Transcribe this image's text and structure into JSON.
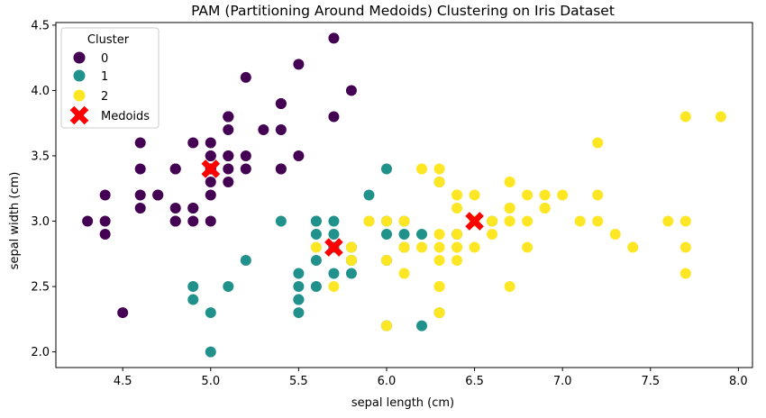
{
  "chart_data": {
    "type": "scatter",
    "title": "PAM (Partitioning Around Medoids) Clustering on Iris Dataset",
    "xlabel": "sepal length (cm)",
    "ylabel": "sepal width (cm)",
    "xlim": [
      4.12,
      8.08
    ],
    "ylim": [
      1.88,
      4.52
    ],
    "xticks": [
      "4.5",
      "5.0",
      "5.5",
      "6.0",
      "6.5",
      "7.0",
      "7.5",
      "8.0"
    ],
    "yticks": [
      "2.0",
      "2.5",
      "3.0",
      "3.5",
      "4.0",
      "4.5"
    ],
    "grid": false,
    "legend": {
      "title": "Cluster",
      "placement": "top-left",
      "entries": [
        "0",
        "1",
        "2",
        "Medoids"
      ]
    },
    "colors": {
      "0": "#440154",
      "1": "#21918c",
      "2": "#fde725",
      "medoid": "#ff0000"
    },
    "series": [
      {
        "name": "0",
        "points": [
          [
            5.1,
            3.5
          ],
          [
            4.9,
            3.0
          ],
          [
            4.7,
            3.2
          ],
          [
            4.6,
            3.1
          ],
          [
            5.0,
            3.6
          ],
          [
            5.4,
            3.9
          ],
          [
            4.6,
            3.4
          ],
          [
            5.0,
            3.4
          ],
          [
            4.4,
            2.9
          ],
          [
            4.9,
            3.1
          ],
          [
            5.4,
            3.7
          ],
          [
            4.8,
            3.4
          ],
          [
            4.8,
            3.0
          ],
          [
            4.3,
            3.0
          ],
          [
            5.8,
            4.0
          ],
          [
            5.7,
            4.4
          ],
          [
            5.4,
            3.9
          ],
          [
            5.1,
            3.5
          ],
          [
            5.7,
            3.8
          ],
          [
            5.1,
            3.8
          ],
          [
            5.4,
            3.4
          ],
          [
            5.1,
            3.7
          ],
          [
            4.6,
            3.6
          ],
          [
            5.1,
            3.3
          ],
          [
            4.8,
            3.4
          ],
          [
            5.0,
            3.0
          ],
          [
            5.0,
            3.4
          ],
          [
            5.2,
            3.5
          ],
          [
            5.2,
            3.4
          ],
          [
            4.7,
            3.2
          ],
          [
            4.8,
            3.1
          ],
          [
            5.4,
            3.4
          ],
          [
            5.2,
            4.1
          ],
          [
            5.5,
            4.2
          ],
          [
            4.9,
            3.1
          ],
          [
            5.0,
            3.2
          ],
          [
            5.5,
            3.5
          ],
          [
            4.9,
            3.6
          ],
          [
            4.4,
            3.0
          ],
          [
            5.1,
            3.4
          ],
          [
            5.0,
            3.5
          ],
          [
            4.5,
            2.3
          ],
          [
            4.4,
            3.2
          ],
          [
            5.0,
            3.5
          ],
          [
            5.1,
            3.8
          ],
          [
            4.8,
            3.0
          ],
          [
            5.1,
            3.8
          ],
          [
            4.6,
            3.2
          ],
          [
            5.3,
            3.7
          ],
          [
            5.0,
            3.3
          ]
        ]
      },
      {
        "name": "1",
        "points": [
          [
            5.5,
            2.3
          ],
          [
            5.7,
            2.8
          ],
          [
            6.3,
            3.3
          ],
          [
            4.9,
            2.4
          ],
          [
            5.2,
            2.7
          ],
          [
            5.0,
            2.0
          ],
          [
            5.9,
            3.0
          ],
          [
            6.0,
            2.2
          ],
          [
            6.1,
            2.9
          ],
          [
            5.6,
            2.9
          ],
          [
            5.6,
            3.0
          ],
          [
            5.8,
            2.7
          ],
          [
            6.2,
            2.2
          ],
          [
            5.6,
            2.5
          ],
          [
            5.9,
            3.2
          ],
          [
            6.1,
            2.8
          ],
          [
            6.4,
            2.9
          ],
          [
            6.0,
            2.9
          ],
          [
            5.7,
            2.6
          ],
          [
            5.5,
            2.4
          ],
          [
            5.5,
            2.4
          ],
          [
            5.8,
            2.7
          ],
          [
            6.0,
            2.7
          ],
          [
            5.4,
            3.0
          ],
          [
            6.0,
            3.4
          ],
          [
            6.3,
            2.3
          ],
          [
            5.6,
            3.0
          ],
          [
            5.5,
            2.5
          ],
          [
            5.5,
            2.6
          ],
          [
            6.1,
            3.0
          ],
          [
            5.8,
            2.6
          ],
          [
            5.0,
            2.3
          ],
          [
            5.6,
            2.7
          ],
          [
            5.7,
            3.0
          ],
          [
            5.7,
            2.9
          ],
          [
            6.2,
            2.9
          ],
          [
            5.1,
            2.5
          ],
          [
            5.7,
            2.8
          ],
          [
            4.9,
            2.5
          ],
          [
            6.6,
            3.0
          ],
          [
            5.8,
            2.8
          ],
          [
            6.0,
            3.0
          ],
          [
            6.1,
            2.8
          ]
        ]
      },
      {
        "name": "2",
        "points": [
          [
            7.0,
            3.2
          ],
          [
            6.4,
            3.2
          ],
          [
            6.9,
            3.1
          ],
          [
            6.5,
            2.8
          ],
          [
            6.6,
            2.9
          ],
          [
            6.7,
            3.1
          ],
          [
            6.1,
            2.8
          ],
          [
            6.8,
            2.8
          ],
          [
            6.7,
            3.0
          ],
          [
            6.3,
            2.5
          ],
          [
            6.1,
            2.8
          ],
          [
            6.4,
            2.9
          ],
          [
            6.6,
            3.0
          ],
          [
            6.7,
            3.1
          ],
          [
            6.3,
            2.3
          ],
          [
            6.7,
            3.1
          ],
          [
            6.3,
            3.3
          ],
          [
            7.1,
            3.0
          ],
          [
            6.3,
            2.9
          ],
          [
            6.5,
            3.0
          ],
          [
            7.6,
            3.0
          ],
          [
            7.3,
            2.9
          ],
          [
            6.7,
            2.5
          ],
          [
            7.2,
            3.6
          ],
          [
            6.5,
            3.2
          ],
          [
            6.4,
            2.7
          ],
          [
            6.8,
            3.0
          ],
          [
            5.7,
            2.5
          ],
          [
            5.8,
            2.8
          ],
          [
            6.4,
            3.2
          ],
          [
            6.5,
            3.0
          ],
          [
            7.7,
            3.8
          ],
          [
            7.7,
            2.6
          ],
          [
            6.0,
            2.2
          ],
          [
            6.9,
            3.2
          ],
          [
            5.6,
            2.8
          ],
          [
            7.7,
            2.8
          ],
          [
            6.3,
            2.7
          ],
          [
            6.7,
            3.3
          ],
          [
            7.2,
            3.2
          ],
          [
            6.2,
            2.8
          ],
          [
            6.1,
            3.0
          ],
          [
            6.4,
            2.8
          ],
          [
            7.2,
            3.0
          ],
          [
            7.4,
            2.8
          ],
          [
            7.9,
            3.8
          ],
          [
            6.4,
            2.8
          ],
          [
            6.3,
            2.8
          ],
          [
            6.1,
            2.6
          ],
          [
            7.7,
            3.0
          ],
          [
            6.3,
            3.4
          ],
          [
            6.4,
            3.1
          ],
          [
            6.0,
            3.0
          ],
          [
            6.9,
            3.1
          ],
          [
            6.7,
            3.1
          ],
          [
            6.9,
            3.1
          ],
          [
            5.8,
            2.7
          ],
          [
            6.8,
            3.2
          ],
          [
            6.7,
            3.3
          ],
          [
            6.7,
            3.0
          ],
          [
            6.3,
            2.5
          ],
          [
            6.5,
            3.0
          ],
          [
            6.2,
            3.4
          ],
          [
            5.9,
            3.0
          ],
          [
            6.0,
            2.7
          ],
          [
            6.2,
            3.4
          ],
          [
            5.9,
            3.0
          ],
          [
            6.3,
            2.5
          ]
        ]
      }
    ],
    "medoids": [
      [
        5.0,
        3.4
      ],
      [
        5.7,
        2.8
      ],
      [
        6.5,
        3.0
      ]
    ]
  }
}
